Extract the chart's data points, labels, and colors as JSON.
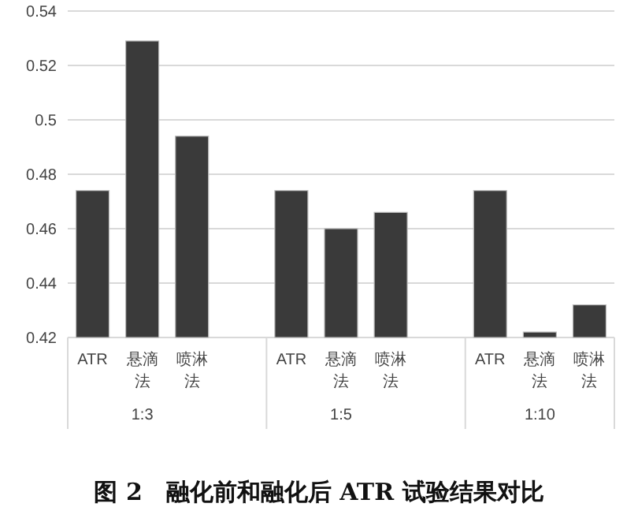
{
  "chart_data": {
    "type": "bar",
    "title": "图 2　融化前和融化后 ATR 试验结果对比",
    "categories": [
      "ATR",
      "悬滴法",
      "喷淋法",
      null,
      "ATR",
      "悬滴法",
      "喷淋法",
      null,
      "ATR",
      "悬滴法",
      "喷淋法"
    ],
    "series": [
      {
        "color": "#3a3a3a",
        "values": [
          0.474,
          0.529,
          0.494,
          null,
          0.474,
          0.46,
          0.466,
          null,
          0.474,
          0.422,
          0.432
        ]
      }
    ],
    "annotations": [
      "1:3",
      "1:5",
      "1:10"
    ],
    "ylim": [
      0.42,
      0.54
    ],
    "yticks": [
      0.42,
      0.44,
      0.46,
      0.48,
      {
        "value": 0.5,
        "label": "0.5"
      },
      0.52,
      0.54
    ],
    "grid": "y"
  }
}
